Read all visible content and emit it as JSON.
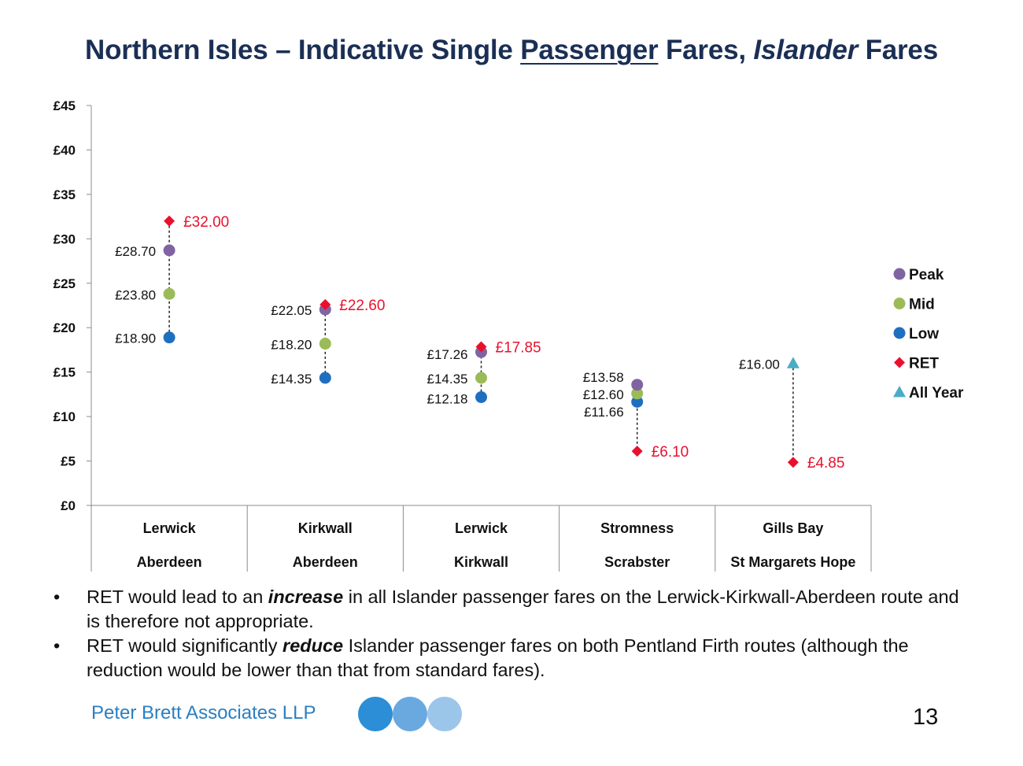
{
  "title": {
    "part1": "Northern Isles – Indicative Single ",
    "part2_underlined": "Passenger",
    "part3": " Fares, ",
    "part4_italic": "Islander",
    "part5": " Fares"
  },
  "chart_data": {
    "type": "scatter",
    "title": "",
    "y_ticks": [
      "£0",
      "£5",
      "£10",
      "£15",
      "£20",
      "£25",
      "£30",
      "£35",
      "£40",
      "£45"
    ],
    "ylim": [
      0,
      45
    ],
    "grid": false,
    "legend_position": "right",
    "categories": [
      {
        "line1": "Lerwick",
        "line2": "Aberdeen"
      },
      {
        "line1": "Kirkwall",
        "line2": "Aberdeen"
      },
      {
        "line1": "Lerwick",
        "line2": "Kirkwall"
      },
      {
        "line1": "Stromness",
        "line2": "Scrabster"
      },
      {
        "line1": "Gills Bay",
        "line2": "St Margarets Hope"
      }
    ],
    "series": [
      {
        "name": "Peak",
        "marker": "circle",
        "color": "#8064a2",
        "values": [
          28.7,
          22.05,
          17.26,
          13.58,
          null
        ],
        "labels": [
          "£28.70",
          "£22.05",
          "£17.26",
          "£13.58",
          null
        ]
      },
      {
        "name": "Mid",
        "marker": "circle",
        "color": "#9bbb59",
        "values": [
          23.8,
          18.2,
          14.35,
          12.6,
          null
        ],
        "labels": [
          "£23.80",
          "£18.20",
          "£14.35",
          "£12.60",
          null
        ]
      },
      {
        "name": "Low",
        "marker": "circle",
        "color": "#1f6fc0",
        "values": [
          18.9,
          14.35,
          12.18,
          11.66,
          null
        ],
        "labels": [
          "£18.90",
          "£14.35",
          "£12.18",
          "£11.66",
          null
        ]
      },
      {
        "name": "RET",
        "marker": "diamond",
        "color": "#e8112d",
        "values": [
          32.0,
          22.6,
          17.85,
          6.1,
          4.85
        ],
        "labels": [
          "£32.00",
          "£22.60",
          "£17.85",
          "£6.10",
          "£4.85"
        ]
      },
      {
        "name": "All Year",
        "marker": "triangle",
        "color": "#4bacc6",
        "values": [
          null,
          null,
          null,
          null,
          16.0
        ],
        "labels": [
          null,
          null,
          null,
          null,
          "£16.00"
        ]
      }
    ]
  },
  "bullets": [
    {
      "before": "RET would lead to an ",
      "emph": "increase",
      "after": " in all Islander passenger fares on the Lerwick-Kirkwall-Aberdeen route and is therefore not appropriate."
    },
    {
      "before": "RET would significantly ",
      "emph": "reduce",
      "after": " Islander passenger fares on both Pentland Firth routes (although the reduction would be lower than that from standard fares)."
    }
  ],
  "bullet_char": "•",
  "footer": {
    "company": "Peter Brett Associates LLP",
    "page_number": "13",
    "logo_circle_colors": [
      "#2b8ed6",
      "#69a9df",
      "#9cc5ea"
    ]
  }
}
